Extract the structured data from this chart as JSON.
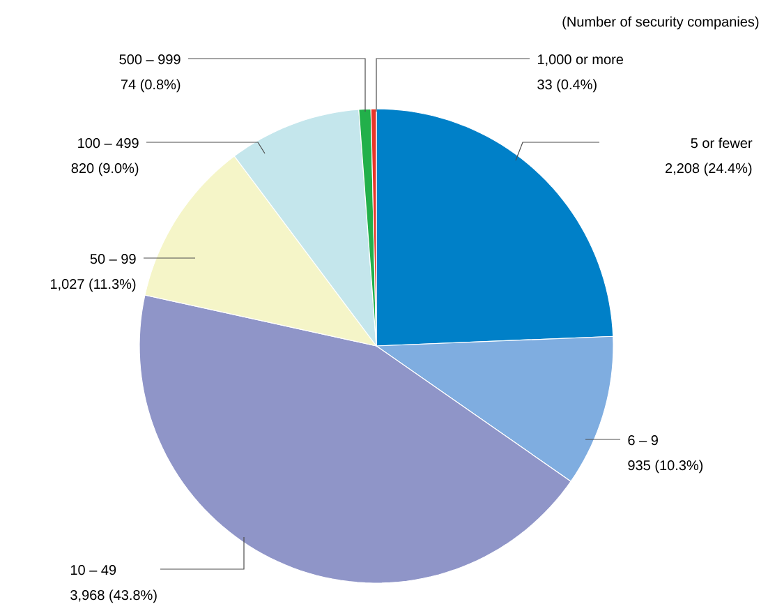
{
  "chart_data": {
    "type": "pie",
    "subtitle": "(Number of security companies)",
    "categories": [
      "5 or fewer",
      "6 – 9",
      "10 – 49",
      "50 – 99",
      "100 – 499",
      "500 – 999",
      "1,000 or more"
    ],
    "values": [
      2208,
      935,
      3968,
      1027,
      820,
      74,
      33
    ],
    "value_labels": [
      "2,208 (24.4%)",
      "935 (10.3%)",
      "3,968 (43.8%)",
      "1,027 (11.3%)",
      "820 (9.0%)",
      "74 (0.8%)",
      "33 (0.4%)"
    ],
    "colors": [
      "#0080c8",
      "#7fade0",
      "#8f95c8",
      "#f5f5c8",
      "#c4e6ec",
      "#22b04a",
      "#e8362a"
    ]
  }
}
